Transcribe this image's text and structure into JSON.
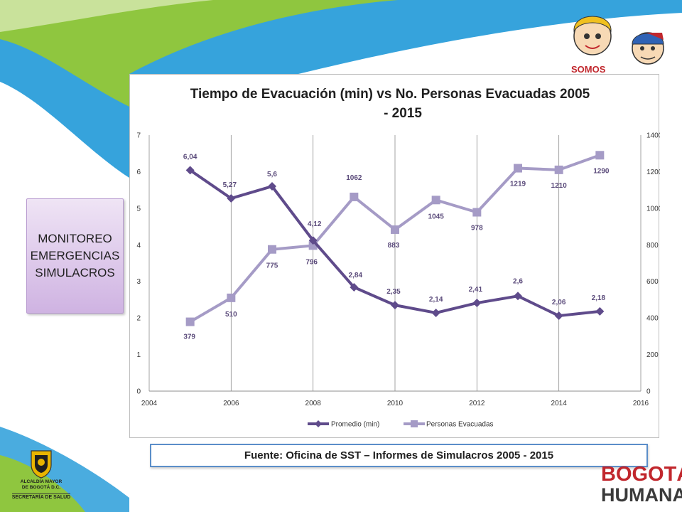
{
  "side_box": {
    "lines": [
      "MONITOREO",
      "EMERGENCIAS",
      "SIMULACROS"
    ]
  },
  "source": {
    "text": "Fuente: Oficina de SST – Informes de Simulacros 2005 - 2015"
  },
  "logos": {
    "alcaldia_line1": "ALCALDÍA MAYOR",
    "alcaldia_line2": "DE BOGOTÁ D.C.",
    "secretaria": "SECRETARÍA DE SALUD",
    "bogota_word1": "BOGOTÁ",
    "bogota_word2": "HUMANA",
    "mascot_text": "SOMOS"
  },
  "colors": {
    "series_promedio": "#5f4b8b",
    "series_personas": "#a59bc6",
    "swoosh_green": "#8fc63f",
    "swoosh_blue": "#36a3dc"
  },
  "chart_data": {
    "type": "line",
    "title": "Tiempo de Evacuación (min) vs No. Personas Evacuadas 2005 - 2015",
    "title_lines": [
      "Tiempo de Evacuación (min) vs No. Personas Evacuadas 2005",
      "- 2015"
    ],
    "x_axis": {
      "min": 2004,
      "max": 2016,
      "ticks": [
        "2004",
        "2006",
        "2008",
        "2010",
        "2012",
        "2014",
        "2016"
      ]
    },
    "y_left": {
      "min": 0,
      "max": 7,
      "ticks": [
        "0",
        "1",
        "2",
        "3",
        "4",
        "5",
        "6",
        "7"
      ]
    },
    "y_right": {
      "min": 0,
      "max": 1400,
      "ticks": [
        "0",
        "200",
        "400",
        "600",
        "800",
        "1000",
        "1200",
        "1400"
      ]
    },
    "grid": "vertical",
    "legend_position": "bottom",
    "series": [
      {
        "name": "Promedio (min)",
        "axis": "left",
        "marker": "diamond",
        "x": [
          2005,
          2006,
          2007,
          2008,
          2009,
          2010,
          2011,
          2012,
          2013,
          2014,
          2015
        ],
        "values": [
          6.04,
          5.27,
          5.6,
          4.12,
          2.84,
          2.35,
          2.14,
          2.41,
          2.6,
          2.06,
          2.18
        ],
        "labels": [
          "6,04",
          "5,27",
          "5,6",
          "4,12",
          "2,84",
          "2,35",
          "2,14",
          "2,41",
          "2,6",
          "2,06",
          "2,18"
        ]
      },
      {
        "name": "Personas Evacuadas",
        "axis": "right",
        "marker": "square",
        "x": [
          2005,
          2006,
          2007,
          2008,
          2009,
          2010,
          2011,
          2012,
          2013,
          2014,
          2015
        ],
        "values": [
          379,
          510,
          775,
          796,
          1062,
          883,
          1045,
          978,
          1219,
          1210,
          1290
        ],
        "labels": [
          "379",
          "510",
          "775",
          "796",
          "1062",
          "883",
          "1045",
          "978",
          "1219",
          "1210",
          "1290"
        ]
      }
    ]
  }
}
